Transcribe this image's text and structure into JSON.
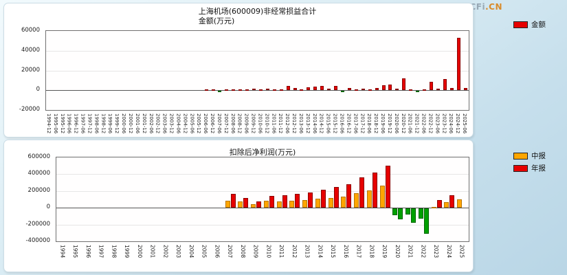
{
  "watermark": {
    "brand_left": "CFi",
    "brand_right": ".CN"
  },
  "chart_data": [
    {
      "type": "bar",
      "title": "上海机场(600009)非经常损益合计",
      "subtitle": "金额(万元)",
      "legend": [
        {
          "label": "金额",
          "color": "#e60000",
          "border": "#8b0000"
        }
      ],
      "legend_position": "right",
      "grid": true,
      "ylim": [
        -20000,
        60000
      ],
      "yticks": [
        60000,
        40000,
        20000,
        0,
        -20000
      ],
      "negative_color": "#00a000",
      "negative_border": "#006400",
      "categories": [
        "1994-12",
        "1995-06",
        "1995-12",
        "1996-06",
        "1996-12",
        "1997-06",
        "1997-12",
        "1998-06",
        "1998-12",
        "1999-06",
        "1999-12",
        "2000-06",
        "2000-12",
        "2001-06",
        "2001-12",
        "2002-06",
        "2002-12",
        "2003-06",
        "2003-12",
        "2004-06",
        "2004-12",
        "2005-06",
        "2005-12",
        "2006-06",
        "2006-12",
        "2007-06",
        "2007-12",
        "2008-06",
        "2008-12",
        "2009-06",
        "2009-12",
        "2010-06",
        "2010-12",
        "2011-06",
        "2011-12",
        "2012-06",
        "2012-12",
        "2013-06",
        "2013-12",
        "2014-06",
        "2014-12",
        "2015-06",
        "2015-12",
        "2016-06",
        "2016-12",
        "2017-06",
        "2017-12",
        "2018-06",
        "2018-12",
        "2019-06",
        "2019-12",
        "2020-06",
        "2020-12",
        "2021-06",
        "2021-12",
        "2022-06",
        "2022-12",
        "2023-06",
        "2023-12",
        "2024-06",
        "2024-12",
        "2025-06"
      ],
      "series": [
        {
          "name": "金额",
          "color": "#e60000",
          "border": "#8b0000",
          "values": [
            0,
            0,
            0,
            0,
            0,
            0,
            0,
            0,
            0,
            0,
            0,
            0,
            0,
            0,
            0,
            0,
            0,
            0,
            0,
            0,
            0,
            0,
            0,
            300,
            1200,
            -600,
            900,
            400,
            1100,
            700,
            1400,
            500,
            1600,
            800,
            1200,
            4200,
            2500,
            1000,
            2800,
            3600,
            4100,
            1800,
            4400,
            -1200,
            2200,
            900,
            1800,
            1200,
            2600,
            5200,
            5800,
            1500,
            12200,
            800,
            -900,
            600,
            8300,
            1600,
            11200,
            2100,
            53000,
            2400
          ]
        }
      ]
    },
    {
      "type": "bar",
      "title": "扣除后净利润(万元)",
      "subtitle": "",
      "legend": [
        {
          "label": "中报",
          "color": "#ffa600",
          "border": "#b87400"
        },
        {
          "label": "年报",
          "color": "#e60000",
          "border": "#8b0000"
        }
      ],
      "legend_position": "right",
      "grid": true,
      "ylim": [
        -400000,
        600000
      ],
      "yticks": [
        600000,
        400000,
        200000,
        0,
        -200000,
        -400000
      ],
      "negative_color": "#00a000",
      "negative_border": "#006400",
      "categories": [
        "1994",
        "1995",
        "1996",
        "1997",
        "1998",
        "1999",
        "2000",
        "2001",
        "2002",
        "2003",
        "2004",
        "2005",
        "2006",
        "2007",
        "2008",
        "2009",
        "2010",
        "2011",
        "2012",
        "2013",
        "2014",
        "2015",
        "2016",
        "2017",
        "2018",
        "2019",
        "2020",
        "2021",
        "2022",
        "2023",
        "2024",
        "2025"
      ],
      "series": [
        {
          "name": "中报",
          "color": "#ffa600",
          "border": "#b87400",
          "values": [
            null,
            null,
            null,
            null,
            null,
            null,
            null,
            null,
            null,
            null,
            null,
            null,
            null,
            85000,
            75000,
            40000,
            80000,
            75000,
            85000,
            95000,
            105000,
            120000,
            135000,
            170000,
            205000,
            265000,
            -77000,
            -74000,
            -125000,
            13000,
            70000,
            100000
          ]
        },
        {
          "name": "年报",
          "color": "#e60000",
          "border": "#8b0000",
          "values": [
            null,
            null,
            null,
            null,
            null,
            null,
            null,
            null,
            null,
            null,
            null,
            null,
            null,
            165000,
            115000,
            75000,
            140000,
            150000,
            165000,
            185000,
            215000,
            245000,
            280000,
            365000,
            420000,
            505000,
            -127000,
            -172000,
            -305000,
            90000,
            152000,
            null
          ]
        }
      ]
    }
  ]
}
